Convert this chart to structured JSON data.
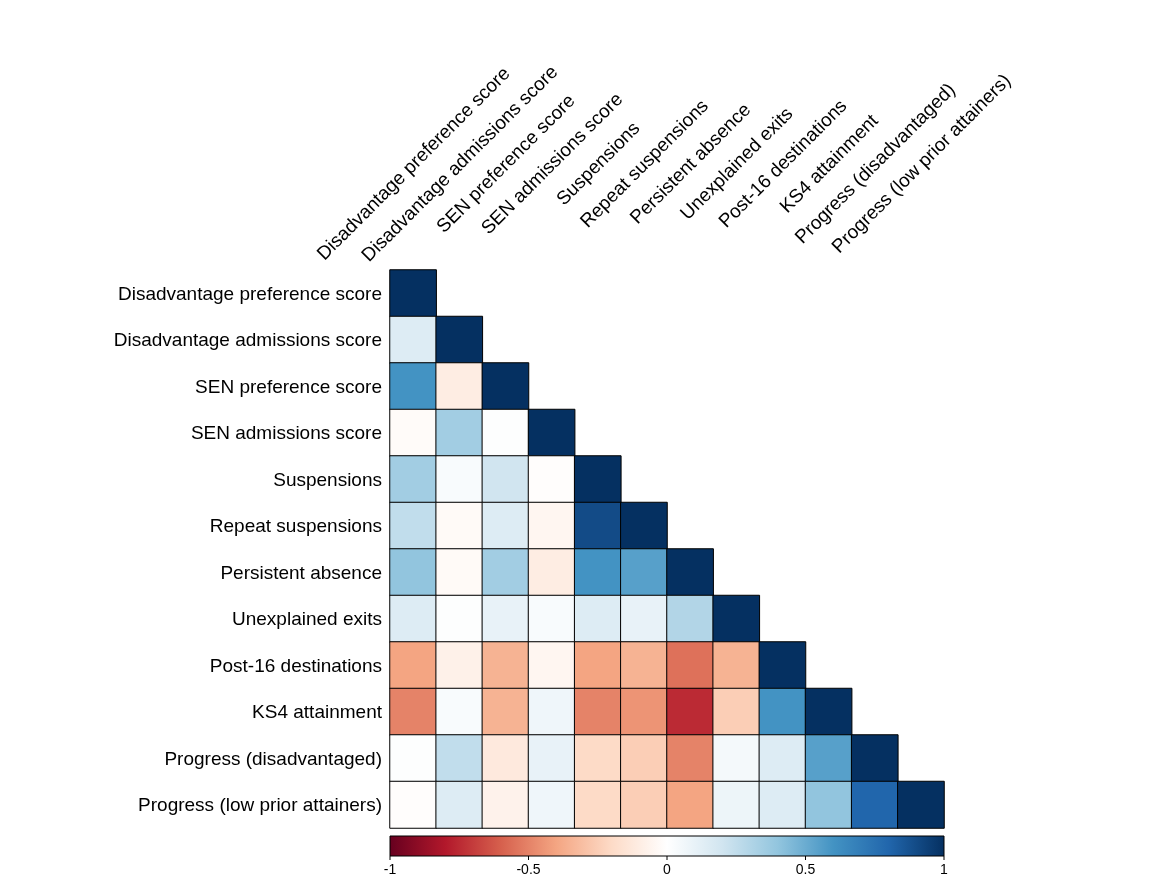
{
  "chart_data": {
    "type": "heatmap",
    "categories": [
      "Disadvantage preference score",
      "Disadvantage admissions score",
      "SEN preference score",
      "SEN admissions score",
      "Suspensions",
      "Repeat suspensions",
      "Persistent absence",
      "Unexplained exits",
      "Post-16 destinations",
      "KS4 attainment",
      "Progress (disadvantaged)",
      "Progress (low prior attainers)"
    ],
    "y_categories": [
      "Disadvantage preference score",
      "Disadvantage admissions score",
      "SEN preference score",
      "SEN admissions score",
      "Suspensions",
      "Repeat suspensions",
      "Persistent absence",
      "Unexplained exits",
      "Post-16 destinations",
      "KS4 attainment",
      "Progress (disadvantaged)",
      "Progress (low prior attainers)"
    ],
    "cells": [
      [
        1,
        null,
        null,
        null,
        null,
        null,
        null,
        null,
        null,
        null,
        null,
        null
      ],
      [
        0.15,
        1,
        null,
        null,
        null,
        null,
        null,
        null,
        null,
        null,
        null,
        null
      ],
      [
        0.6,
        -0.1,
        1,
        null,
        null,
        null,
        null,
        null,
        null,
        null,
        null,
        null
      ],
      [
        -0.02,
        0.35,
        0.01,
        1,
        null,
        null,
        null,
        null,
        null,
        null,
        null,
        null
      ],
      [
        0.35,
        0.03,
        0.2,
        -0.01,
        1,
        null,
        null,
        null,
        null,
        null,
        null,
        null
      ],
      [
        0.25,
        -0.03,
        0.15,
        -0.05,
        0.9,
        1,
        null,
        null,
        null,
        null,
        null,
        null
      ],
      [
        0.4,
        -0.03,
        0.35,
        -0.1,
        0.6,
        0.55,
        1,
        null,
        null,
        null,
        null,
        null
      ],
      [
        0.15,
        0.01,
        0.1,
        0.03,
        0.15,
        0.1,
        0.3,
        1,
        null,
        null,
        null,
        null
      ],
      [
        -0.4,
        -0.08,
        -0.35,
        -0.05,
        -0.4,
        -0.35,
        -0.55,
        -0.35,
        1,
        null,
        null,
        null
      ],
      [
        -0.5,
        0.03,
        -0.35,
        0.07,
        -0.5,
        -0.45,
        -0.75,
        -0.25,
        0.6,
        1,
        null,
        null
      ],
      [
        0.01,
        0.25,
        -0.12,
        0.1,
        -0.2,
        -0.25,
        -0.5,
        0.05,
        0.15,
        0.55,
        1,
        null
      ],
      [
        -0.01,
        0.15,
        -0.07,
        0.07,
        -0.2,
        -0.25,
        -0.4,
        0.08,
        0.15,
        0.4,
        0.8,
        1
      ]
    ],
    "clim": [
      -1,
      1
    ],
    "cticks": [
      -1,
      -0.5,
      0,
      0.5,
      1
    ]
  }
}
